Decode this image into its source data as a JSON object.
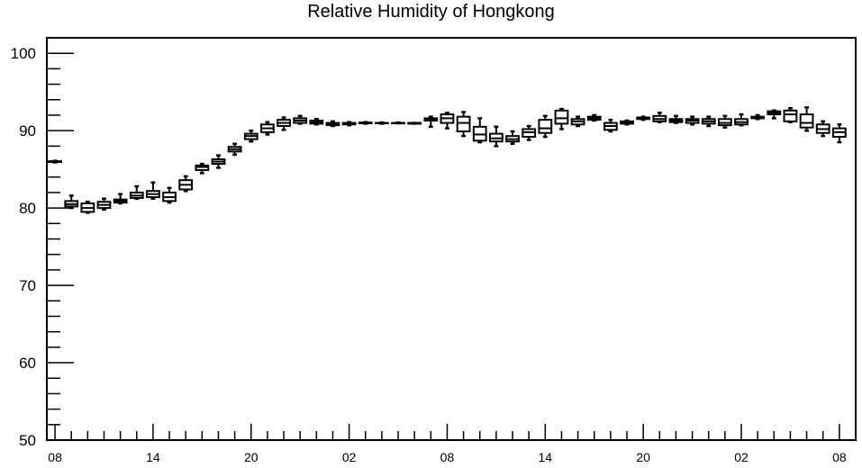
{
  "chart_data": {
    "type": "box",
    "title": "Relative Humidity of Hongkong",
    "xlabel": "",
    "ylabel": "",
    "ylim": [
      50,
      102
    ],
    "yticks": [
      50,
      60,
      70,
      80,
      90,
      100
    ],
    "x_tick_labels": [
      "08",
      "14",
      "20",
      "02",
      "08",
      "14",
      "20",
      "02",
      "08"
    ],
    "x_tick_hours": [
      0,
      6,
      12,
      18,
      24,
      30,
      36,
      42,
      48
    ],
    "xlim_hours": [
      -0.5,
      49
    ],
    "grid": false,
    "series": [
      {
        "boxes": [
          {
            "hour": 0,
            "min": 85.9,
            "q1": 85.95,
            "median": 86.0,
            "q3": 86.05,
            "max": 86.1
          },
          {
            "hour": 1,
            "min": 80.0,
            "q1": 80.2,
            "median": 80.5,
            "q3": 80.9,
            "max": 81.6
          },
          {
            "hour": 2,
            "min": 79.4,
            "q1": 79.5,
            "median": 80.0,
            "q3": 80.6,
            "max": 80.8
          },
          {
            "hour": 3,
            "min": 79.8,
            "q1": 80.0,
            "median": 80.4,
            "q3": 80.8,
            "max": 81.2
          },
          {
            "hour": 4,
            "min": 80.6,
            "q1": 80.7,
            "median": 80.9,
            "q3": 81.1,
            "max": 81.8
          },
          {
            "hour": 5,
            "min": 81.2,
            "q1": 81.3,
            "median": 81.6,
            "q3": 82.0,
            "max": 82.8
          },
          {
            "hour": 6,
            "min": 81.2,
            "q1": 81.4,
            "median": 81.8,
            "q3": 82.2,
            "max": 83.3
          },
          {
            "hour": 7,
            "min": 80.7,
            "q1": 80.9,
            "median": 81.4,
            "q3": 82.0,
            "max": 82.6
          },
          {
            "hour": 8,
            "min": 82.2,
            "q1": 82.4,
            "median": 83.0,
            "q3": 83.6,
            "max": 84.1
          },
          {
            "hour": 9,
            "min": 84.5,
            "q1": 84.9,
            "median": 85.3,
            "q3": 85.5,
            "max": 85.7
          },
          {
            "hour": 10,
            "min": 85.2,
            "q1": 85.7,
            "median": 86.0,
            "q3": 86.3,
            "max": 86.8
          },
          {
            "hour": 11,
            "min": 86.9,
            "q1": 87.3,
            "median": 87.6,
            "q3": 87.9,
            "max": 88.3
          },
          {
            "hour": 12,
            "min": 88.6,
            "q1": 88.9,
            "median": 89.3,
            "q3": 89.6,
            "max": 90.0
          },
          {
            "hour": 13,
            "min": 89.5,
            "q1": 89.8,
            "median": 90.3,
            "q3": 90.8,
            "max": 91.1
          },
          {
            "hour": 14,
            "min": 90.1,
            "q1": 90.6,
            "median": 91.0,
            "q3": 91.4,
            "max": 91.7
          },
          {
            "hour": 15,
            "min": 90.9,
            "q1": 91.0,
            "median": 91.3,
            "q3": 91.6,
            "max": 91.9
          },
          {
            "hour": 16,
            "min": 90.8,
            "q1": 90.9,
            "median": 91.1,
            "q3": 91.3,
            "max": 91.5
          },
          {
            "hour": 17,
            "min": 90.6,
            "q1": 90.7,
            "median": 90.9,
            "q3": 91.0,
            "max": 91.2
          },
          {
            "hour": 18,
            "min": 90.7,
            "q1": 90.8,
            "median": 90.9,
            "q3": 91.0,
            "max": 91.1
          },
          {
            "hour": 19,
            "min": 90.9,
            "q1": 90.95,
            "median": 91.0,
            "q3": 91.05,
            "max": 91.1
          },
          {
            "hour": 20,
            "min": 90.9,
            "q1": 90.95,
            "median": 91.0,
            "q3": 91.0,
            "max": 91.05
          },
          {
            "hour": 21,
            "min": 90.95,
            "q1": 90.95,
            "median": 91.0,
            "q3": 91.0,
            "max": 91.05
          },
          {
            "hour": 22,
            "min": 90.9,
            "q1": 90.9,
            "median": 91.0,
            "q3": 91.0,
            "max": 91.0
          },
          {
            "hour": 23,
            "min": 90.5,
            "q1": 91.3,
            "median": 91.5,
            "q3": 91.6,
            "max": 91.8
          },
          {
            "hour": 24,
            "min": 90.3,
            "q1": 91.0,
            "median": 91.6,
            "q3": 92.1,
            "max": 92.3
          },
          {
            "hour": 25,
            "min": 89.3,
            "q1": 89.9,
            "median": 91.0,
            "q3": 91.8,
            "max": 92.4
          },
          {
            "hour": 26,
            "min": 88.5,
            "q1": 88.7,
            "median": 89.5,
            "q3": 90.5,
            "max": 91.6
          },
          {
            "hour": 27,
            "min": 88.0,
            "q1": 88.6,
            "median": 89.0,
            "q3": 89.6,
            "max": 90.5
          },
          {
            "hour": 28,
            "min": 88.3,
            "q1": 88.6,
            "median": 88.9,
            "q3": 89.3,
            "max": 89.9
          },
          {
            "hour": 29,
            "min": 88.8,
            "q1": 89.2,
            "median": 89.8,
            "q3": 90.2,
            "max": 90.6
          },
          {
            "hour": 30,
            "min": 89.2,
            "q1": 89.7,
            "median": 90.3,
            "q3": 91.4,
            "max": 91.9
          },
          {
            "hour": 31,
            "min": 90.2,
            "q1": 90.9,
            "median": 91.6,
            "q3": 92.6,
            "max": 92.8
          },
          {
            "hour": 32,
            "min": 90.6,
            "q1": 90.8,
            "median": 91.2,
            "q3": 91.5,
            "max": 91.8
          },
          {
            "hour": 33,
            "min": 91.3,
            "q1": 91.4,
            "median": 91.6,
            "q3": 91.8,
            "max": 92.0
          },
          {
            "hour": 34,
            "min": 89.9,
            "q1": 90.1,
            "median": 90.6,
            "q3": 91.0,
            "max": 91.4
          },
          {
            "hour": 35,
            "min": 90.8,
            "q1": 90.9,
            "median": 91.0,
            "q3": 91.2,
            "max": 91.3
          },
          {
            "hour": 36,
            "min": 91.4,
            "q1": 91.5,
            "median": 91.6,
            "q3": 91.7,
            "max": 91.8
          },
          {
            "hour": 37,
            "min": 91.1,
            "q1": 91.2,
            "median": 91.5,
            "q3": 91.9,
            "max": 92.3
          },
          {
            "hour": 38,
            "min": 91.0,
            "q1": 91.1,
            "median": 91.3,
            "q3": 91.5,
            "max": 91.9
          },
          {
            "hour": 39,
            "min": 90.8,
            "q1": 91.0,
            "median": 91.3,
            "q3": 91.5,
            "max": 91.8
          },
          {
            "hour": 40,
            "min": 90.6,
            "q1": 90.9,
            "median": 91.2,
            "q3": 91.5,
            "max": 91.8
          },
          {
            "hour": 41,
            "min": 90.4,
            "q1": 90.7,
            "median": 91.0,
            "q3": 91.5,
            "max": 91.9
          },
          {
            "hour": 42,
            "min": 90.7,
            "q1": 90.8,
            "median": 91.1,
            "q3": 91.5,
            "max": 92.1
          },
          {
            "hour": 43,
            "min": 91.5,
            "q1": 91.6,
            "median": 91.7,
            "q3": 91.8,
            "max": 92.0
          },
          {
            "hour": 44,
            "min": 91.6,
            "q1": 92.1,
            "median": 92.3,
            "q3": 92.5,
            "max": 92.6
          },
          {
            "hour": 45,
            "min": 91.1,
            "q1": 91.2,
            "median": 92.1,
            "q3": 92.6,
            "max": 92.9
          },
          {
            "hour": 46,
            "min": 90.0,
            "q1": 90.4,
            "median": 91.0,
            "q3": 92.1,
            "max": 93.0
          },
          {
            "hour": 47,
            "min": 89.3,
            "q1": 89.7,
            "median": 90.2,
            "q3": 90.8,
            "max": 91.2
          },
          {
            "hour": 48,
            "min": 88.5,
            "q1": 89.2,
            "median": 89.8,
            "q3": 90.3,
            "max": 90.8
          }
        ]
      }
    ],
    "colors": {
      "box": "#000000",
      "axis": "#000000",
      "background": "#ffffff"
    }
  }
}
